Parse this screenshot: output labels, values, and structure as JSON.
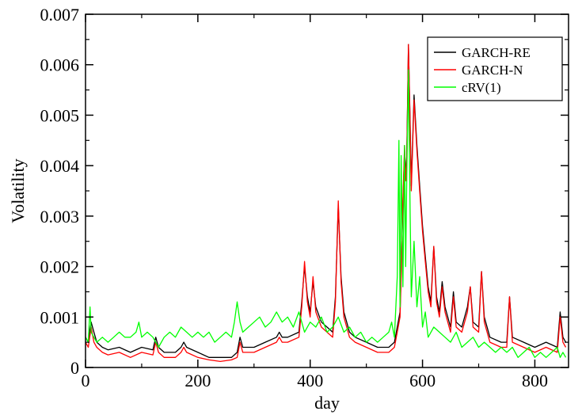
{
  "chart_data": {
    "type": "line",
    "title": "",
    "xlabel": "day",
    "ylabel": "Volatility",
    "xlim": [
      0,
      860
    ],
    "ylim": [
      0,
      0.007
    ],
    "xticks": [
      0,
      200,
      400,
      600,
      800
    ],
    "xtick_labels": [
      "0",
      "200",
      "400",
      "600",
      "800"
    ],
    "yticks": [
      0,
      0.001,
      0.002,
      0.003,
      0.004,
      0.005,
      0.006,
      0.007
    ],
    "ytick_labels": [
      "0",
      "0.001",
      "0.002",
      "0.003",
      "0.004",
      "0.005",
      "0.006",
      "0.007"
    ],
    "grid": false,
    "legend_position": "top-right",
    "series": [
      {
        "name": "GARCH-RE",
        "color": "#000000",
        "x": [
          0,
          5,
          10,
          15,
          20,
          30,
          40,
          60,
          80,
          100,
          120,
          125,
          130,
          140,
          160,
          170,
          175,
          180,
          200,
          220,
          240,
          260,
          270,
          275,
          280,
          300,
          320,
          340,
          345,
          350,
          360,
          380,
          385,
          390,
          395,
          400,
          405,
          410,
          420,
          430,
          440,
          445,
          450,
          455,
          460,
          470,
          480,
          500,
          520,
          540,
          550,
          555,
          560,
          562,
          565,
          568,
          570,
          572,
          575,
          578,
          580,
          585,
          590,
          595,
          600,
          605,
          610,
          615,
          620,
          625,
          630,
          635,
          640,
          650,
          655,
          660,
          670,
          680,
          685,
          690,
          700,
          705,
          710,
          720,
          740,
          750,
          755,
          760,
          780,
          800,
          820,
          840,
          845,
          850,
          855
        ],
        "y": [
          0.0006,
          0.0005,
          0.0009,
          0.0007,
          0.0005,
          0.0004,
          0.00035,
          0.0004,
          0.0003,
          0.0004,
          0.00035,
          0.0006,
          0.0004,
          0.0003,
          0.0003,
          0.0004,
          0.0005,
          0.0004,
          0.0003,
          0.0002,
          0.0002,
          0.0002,
          0.0003,
          0.0006,
          0.0004,
          0.0004,
          0.0005,
          0.0006,
          0.0007,
          0.0006,
          0.0006,
          0.0007,
          0.0013,
          0.002,
          0.0014,
          0.0011,
          0.0017,
          0.0012,
          0.0009,
          0.0008,
          0.0007,
          0.0014,
          0.0032,
          0.0018,
          0.0011,
          0.0007,
          0.0006,
          0.0005,
          0.0004,
          0.0004,
          0.0005,
          0.0008,
          0.0011,
          0.0019,
          0.0032,
          0.0043,
          0.0038,
          0.0042,
          0.0064,
          0.0048,
          0.0036,
          0.0054,
          0.0044,
          0.0036,
          0.0028,
          0.0022,
          0.0016,
          0.0013,
          0.0024,
          0.0014,
          0.0011,
          0.0017,
          0.0012,
          0.0008,
          0.0015,
          0.0009,
          0.0008,
          0.0012,
          0.0016,
          0.0009,
          0.0008,
          0.0019,
          0.001,
          0.0006,
          0.0005,
          0.0005,
          0.0014,
          0.0006,
          0.0005,
          0.0004,
          0.0005,
          0.0004,
          0.0011,
          0.0006,
          0.0005
        ]
      },
      {
        "name": "GARCH-N",
        "color": "#ff0000",
        "x": [
          0,
          5,
          10,
          15,
          20,
          30,
          40,
          60,
          80,
          100,
          120,
          125,
          130,
          140,
          160,
          170,
          175,
          180,
          200,
          220,
          240,
          260,
          270,
          275,
          280,
          300,
          320,
          340,
          345,
          350,
          360,
          380,
          385,
          390,
          395,
          400,
          405,
          410,
          420,
          430,
          440,
          445,
          450,
          455,
          460,
          470,
          480,
          500,
          520,
          540,
          550,
          555,
          560,
          562,
          565,
          568,
          570,
          572,
          575,
          578,
          580,
          585,
          590,
          595,
          600,
          605,
          610,
          615,
          620,
          625,
          630,
          635,
          640,
          650,
          655,
          660,
          670,
          680,
          685,
          690,
          700,
          705,
          710,
          720,
          740,
          750,
          755,
          760,
          780,
          800,
          820,
          840,
          845,
          850,
          855
        ],
        "y": [
          0.0005,
          0.0004,
          0.0008,
          0.0005,
          0.0004,
          0.0003,
          0.00025,
          0.0003,
          0.0002,
          0.0003,
          0.00025,
          0.0005,
          0.0003,
          0.0002,
          0.0002,
          0.0003,
          0.0004,
          0.0003,
          0.0002,
          0.00015,
          0.00012,
          0.00015,
          0.0002,
          0.0005,
          0.0003,
          0.0003,
          0.0004,
          0.0005,
          0.0006,
          0.0005,
          0.0005,
          0.0006,
          0.0012,
          0.0021,
          0.0013,
          0.001,
          0.0018,
          0.0011,
          0.0008,
          0.0007,
          0.0006,
          0.0013,
          0.0033,
          0.0017,
          0.001,
          0.0006,
          0.0005,
          0.0004,
          0.0003,
          0.0003,
          0.0004,
          0.0007,
          0.001,
          0.0018,
          0.0033,
          0.0044,
          0.0037,
          0.0041,
          0.0064,
          0.0047,
          0.0035,
          0.0053,
          0.0043,
          0.0035,
          0.0027,
          0.0021,
          0.0015,
          0.0012,
          0.0024,
          0.0013,
          0.001,
          0.0016,
          0.0011,
          0.0007,
          0.0014,
          0.0008,
          0.0007,
          0.0011,
          0.0016,
          0.0008,
          0.0007,
          0.0019,
          0.0009,
          0.0005,
          0.0004,
          0.0004,
          0.0014,
          0.0005,
          0.0004,
          0.0003,
          0.0004,
          0.0003,
          0.001,
          0.0005,
          0.0004
        ]
      },
      {
        "name": "cRV(1)",
        "color": "#00ff00",
        "x": [
          0,
          5,
          8,
          10,
          15,
          20,
          30,
          40,
          50,
          60,
          70,
          80,
          90,
          95,
          100,
          110,
          120,
          130,
          140,
          150,
          160,
          170,
          180,
          190,
          200,
          210,
          220,
          230,
          240,
          250,
          260,
          265,
          270,
          275,
          280,
          290,
          300,
          310,
          320,
          330,
          340,
          350,
          360,
          370,
          380,
          390,
          400,
          410,
          420,
          430,
          440,
          450,
          460,
          470,
          480,
          490,
          500,
          510,
          520,
          530,
          540,
          545,
          550,
          555,
          558,
          560,
          562,
          565,
          568,
          570,
          572,
          575,
          578,
          580,
          585,
          590,
          595,
          600,
          605,
          610,
          620,
          630,
          640,
          650,
          660,
          670,
          680,
          690,
          700,
          710,
          720,
          730,
          740,
          750,
          760,
          770,
          780,
          790,
          800,
          810,
          820,
          830,
          840,
          845,
          850,
          855
        ],
        "y": [
          0.0006,
          0.0005,
          0.0012,
          0.0007,
          0.0006,
          0.0005,
          0.0006,
          0.0005,
          0.0006,
          0.0007,
          0.0006,
          0.0006,
          0.0007,
          0.0009,
          0.0006,
          0.0007,
          0.0006,
          0.0004,
          0.0006,
          0.0007,
          0.0006,
          0.0008,
          0.0007,
          0.0006,
          0.0007,
          0.0006,
          0.0007,
          0.0005,
          0.0006,
          0.0007,
          0.0006,
          0.0009,
          0.0013,
          0.0009,
          0.0007,
          0.0008,
          0.0009,
          0.001,
          0.0008,
          0.0009,
          0.0011,
          0.0009,
          0.001,
          0.0008,
          0.0011,
          0.0007,
          0.0009,
          0.0008,
          0.001,
          0.0007,
          0.0008,
          0.001,
          0.0007,
          0.0008,
          0.0006,
          0.0007,
          0.0005,
          0.0006,
          0.0005,
          0.0006,
          0.0007,
          0.0009,
          0.0006,
          0.0018,
          0.0045,
          0.0012,
          0.0042,
          0.0016,
          0.0044,
          0.002,
          0.0038,
          0.0059,
          0.003,
          0.0014,
          0.0025,
          0.0012,
          0.0018,
          0.0008,
          0.0011,
          0.0006,
          0.0008,
          0.0007,
          0.0006,
          0.0005,
          0.0007,
          0.0004,
          0.0005,
          0.0006,
          0.0004,
          0.0005,
          0.0004,
          0.0003,
          0.0004,
          0.0003,
          0.0004,
          0.0002,
          0.0003,
          0.0004,
          0.0002,
          0.0003,
          0.0002,
          0.0003,
          0.0004,
          0.0002,
          0.0003,
          0.0002
        ]
      }
    ]
  }
}
